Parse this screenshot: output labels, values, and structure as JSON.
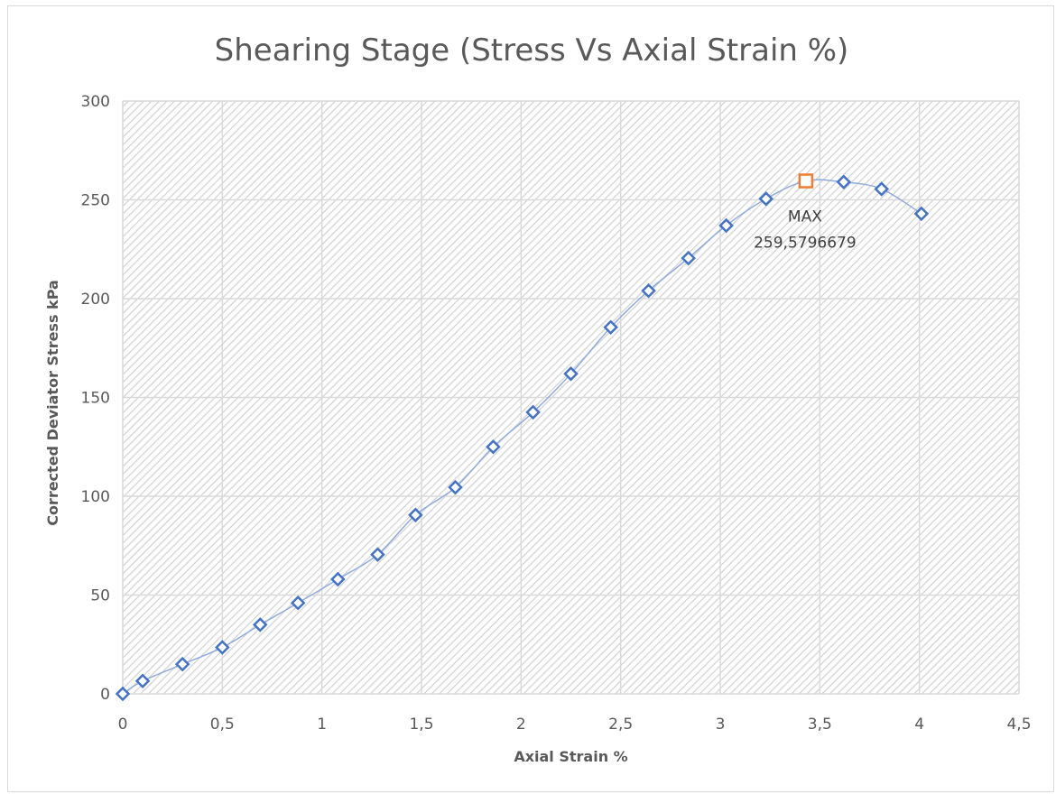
{
  "chart_data": {
    "type": "scatter",
    "title": "Shearing Stage (Stress Vs Axial Strain %)",
    "xlabel": "Axial Strain %",
    "ylabel": "Corrected Deviator Stress  kPa",
    "xlim": [
      0,
      4.5
    ],
    "ylim": [
      0,
      300
    ],
    "x_ticks": [
      "0",
      "0,5",
      "1",
      "1,5",
      "2",
      "2,5",
      "3",
      "3,5",
      "4",
      "4,5"
    ],
    "y_ticks": [
      "0",
      "50",
      "100",
      "150",
      "200",
      "250",
      "300"
    ],
    "grid": true,
    "background": "hatched",
    "series_color": "#4472c4",
    "line_color": "#8faadc",
    "max_marker_color": "#ed7d31",
    "series": [
      {
        "x": [
          0,
          0.1,
          0.3,
          0.5,
          0.69,
          0.88,
          1.08,
          1.28,
          1.47,
          1.67,
          1.86,
          2.06,
          2.25,
          2.45,
          2.64,
          2.84,
          3.03,
          3.23,
          3.62,
          3.81,
          4.01
        ],
        "values": [
          0,
          6.5,
          15,
          23.5,
          35,
          46,
          58,
          70.5,
          90.5,
          104.5,
          125,
          142.5,
          162,
          185.5,
          204,
          220.5,
          237,
          250.5,
          259,
          255.5,
          243
        ]
      }
    ],
    "max_point": {
      "x": 3.43,
      "y": 259.5796679
    },
    "annotation": {
      "line1": "MAX",
      "line2": "259,5796679"
    }
  }
}
